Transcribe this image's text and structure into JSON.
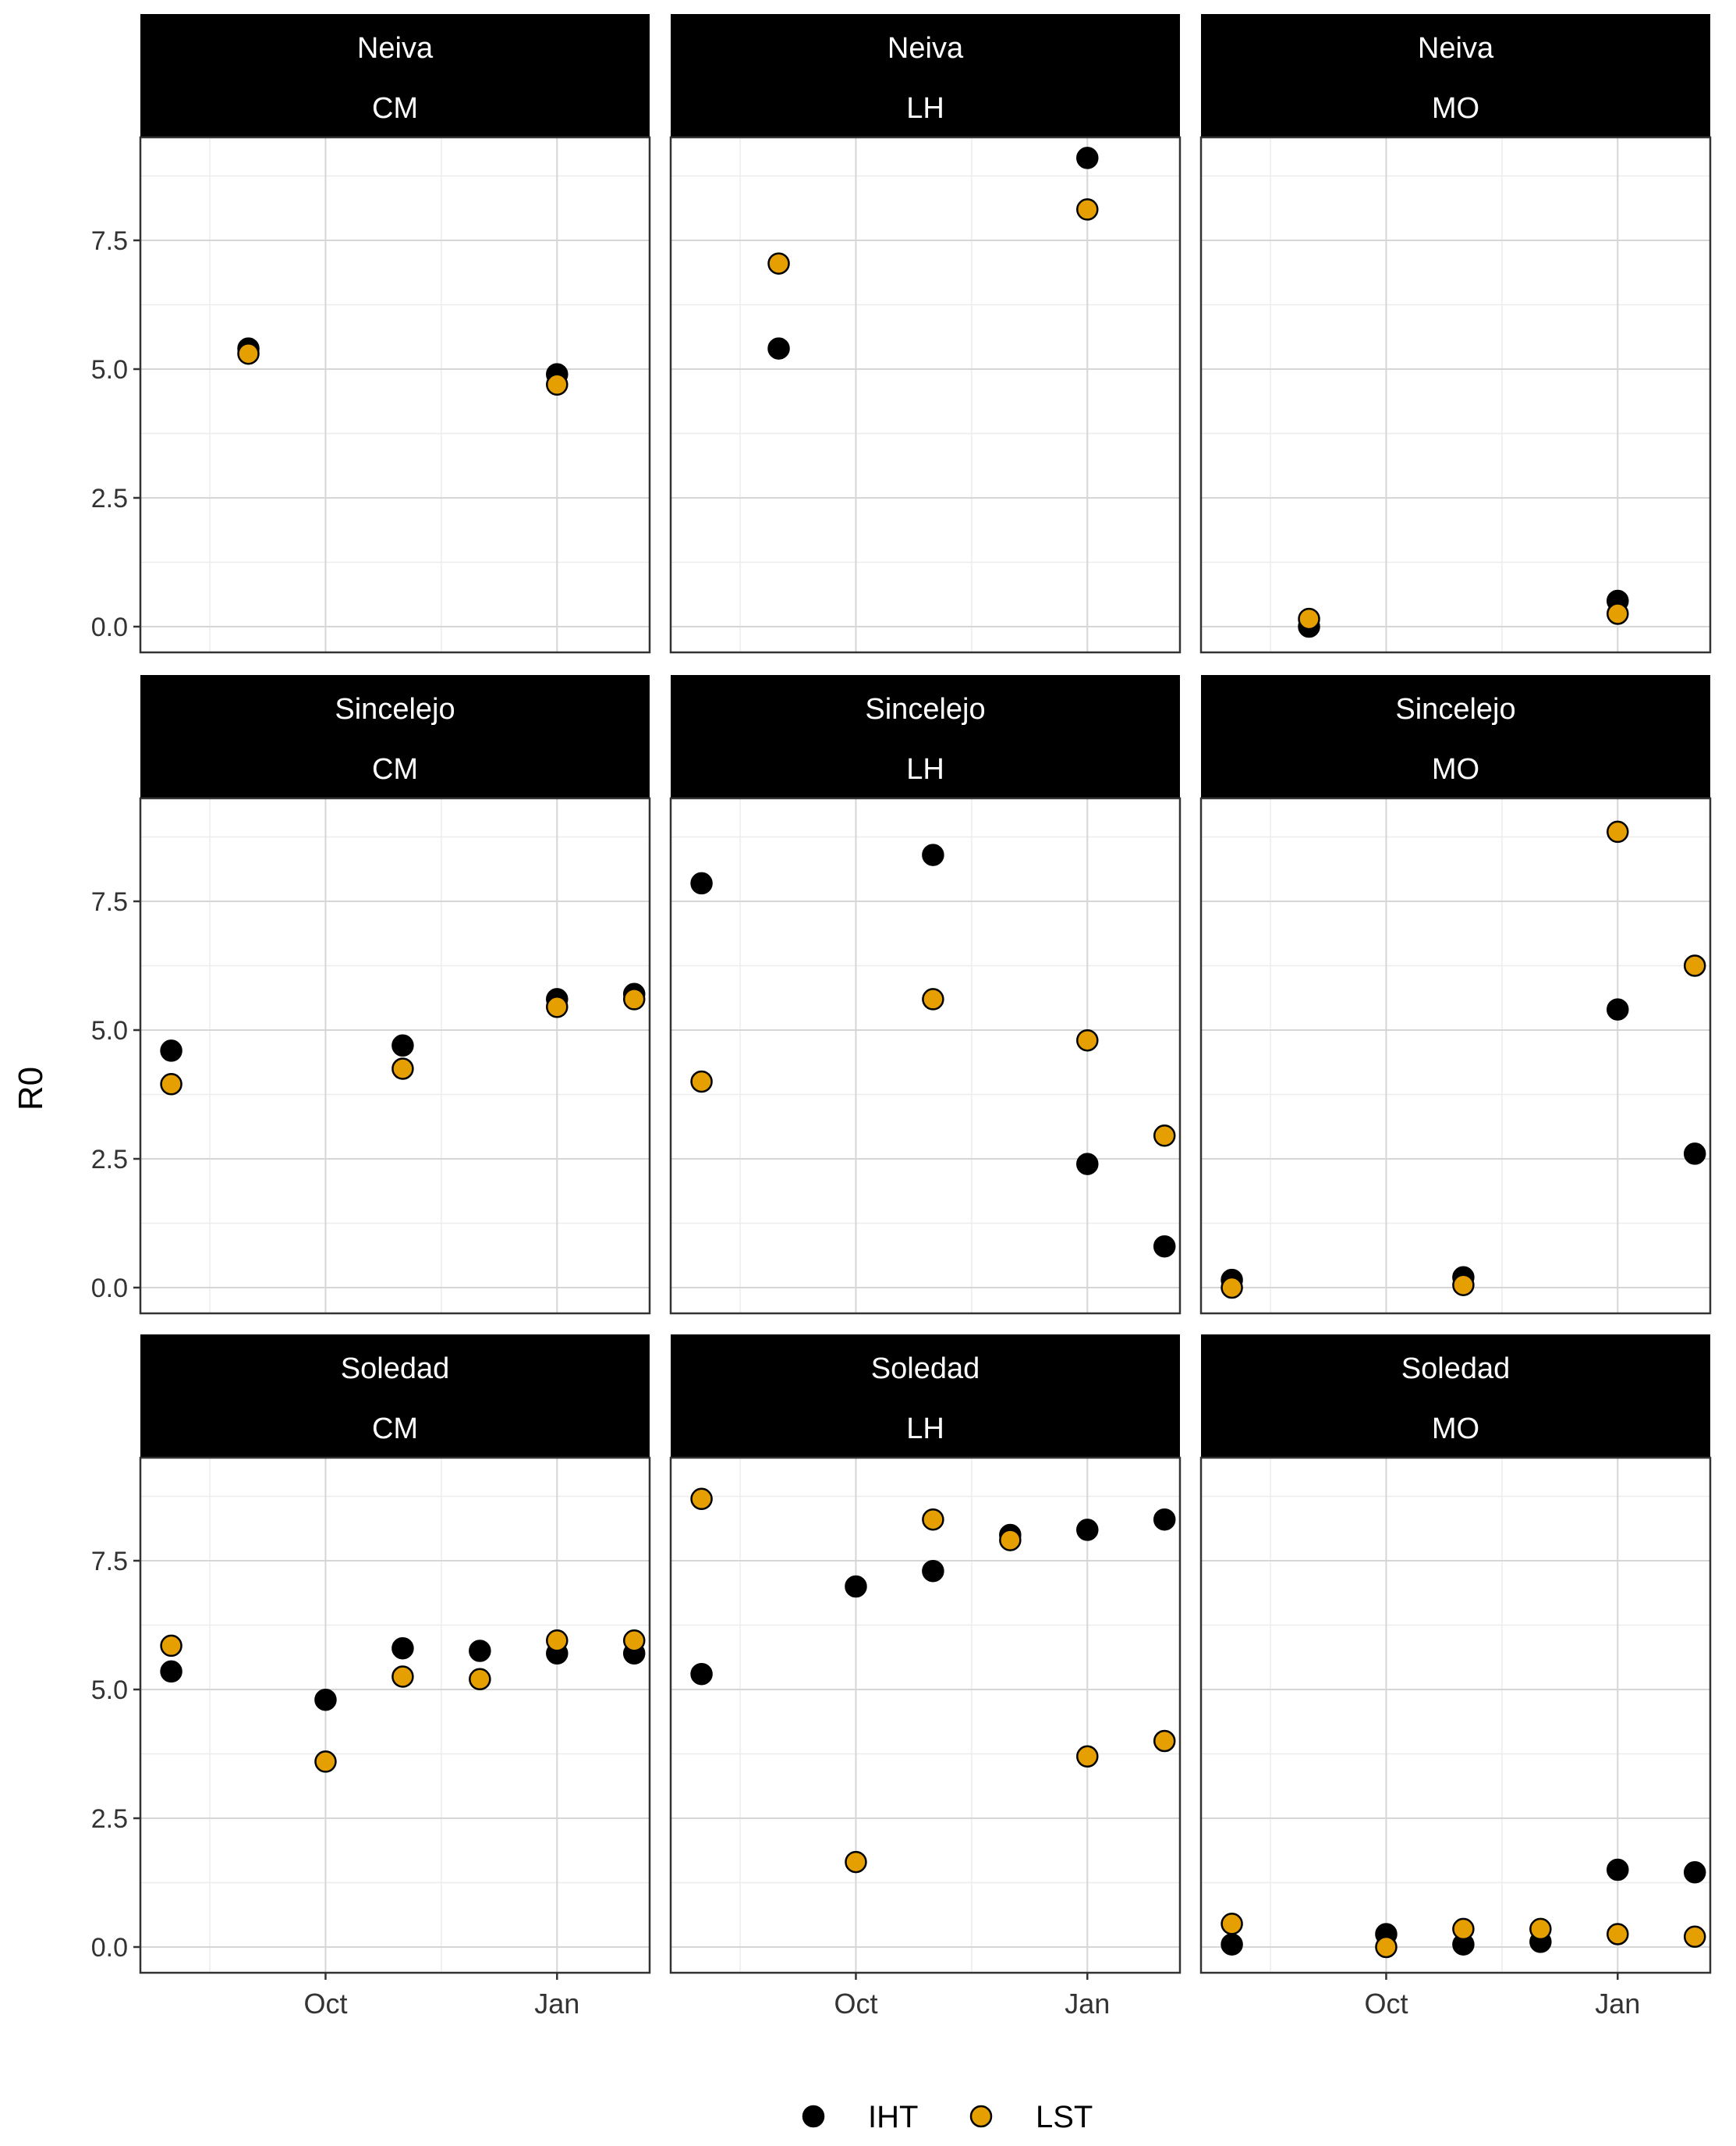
{
  "chart_data": {
    "type": "scatter",
    "ylabel": "R0",
    "xlabel": "",
    "ylim": [
      -0.5,
      9.5
    ],
    "yticks": [
      0.0,
      2.5,
      5.0,
      7.5
    ],
    "ytick_labels": [
      "0.0",
      "2.5",
      "5.0",
      "7.5"
    ],
    "x_domain": [
      -2.4,
      4.2
    ],
    "x_unit": "months relative to October (Oct = 0, Jan = 3)",
    "xticks": [
      0,
      3
    ],
    "xtick_labels": [
      "Oct",
      "Jan"
    ],
    "x_minor_gridlines": [
      -1.5,
      1.5
    ],
    "legend": {
      "position": "bottom",
      "entries": [
        {
          "label": "IHT",
          "color": "#000000"
        },
        {
          "label": "LST",
          "color": "#E69F00"
        }
      ]
    },
    "series_colors": {
      "IHT": "#000000",
      "LST": "#E69F00"
    },
    "panels": [
      {
        "strip_top": "Neiva",
        "strip_bottom": "CM",
        "IHT": [
          [
            -1,
            5.4
          ],
          [
            3,
            4.9
          ]
        ],
        "LST": [
          [
            -1,
            5.3
          ],
          [
            3,
            4.7
          ]
        ]
      },
      {
        "strip_top": "Neiva",
        "strip_bottom": "LH",
        "IHT": [
          [
            -1,
            5.4
          ],
          [
            3,
            9.1
          ]
        ],
        "LST": [
          [
            -1,
            7.05
          ],
          [
            3,
            8.1
          ]
        ]
      },
      {
        "strip_top": "Neiva",
        "strip_bottom": "MO",
        "IHT": [
          [
            -1,
            0.0
          ],
          [
            3,
            0.5
          ]
        ],
        "LST": [
          [
            -1,
            0.15
          ],
          [
            3,
            0.25
          ]
        ]
      },
      {
        "strip_top": "Sincelejo",
        "strip_bottom": "CM",
        "IHT": [
          [
            -2,
            4.6
          ],
          [
            1,
            4.7
          ],
          [
            3,
            5.6
          ],
          [
            4,
            5.7
          ]
        ],
        "LST": [
          [
            -2,
            3.95
          ],
          [
            1,
            4.25
          ],
          [
            3,
            5.45
          ],
          [
            4,
            5.6
          ]
        ]
      },
      {
        "strip_top": "Sincelejo",
        "strip_bottom": "LH",
        "IHT": [
          [
            -2,
            7.85
          ],
          [
            1,
            8.4
          ],
          [
            3,
            2.4
          ],
          [
            4,
            0.8
          ]
        ],
        "LST": [
          [
            -2,
            4.0
          ],
          [
            1,
            5.6
          ],
          [
            3,
            4.8
          ],
          [
            4,
            2.95
          ]
        ]
      },
      {
        "strip_top": "Sincelejo",
        "strip_bottom": "MO",
        "IHT": [
          [
            -2,
            0.15
          ],
          [
            1,
            0.2
          ],
          [
            3,
            5.4
          ],
          [
            4,
            2.6
          ]
        ],
        "LST": [
          [
            -2,
            0.0
          ],
          [
            1,
            0.05
          ],
          [
            3,
            8.85
          ],
          [
            4,
            6.25
          ]
        ]
      },
      {
        "strip_top": "Soledad",
        "strip_bottom": "CM",
        "IHT": [
          [
            -2,
            5.35
          ],
          [
            0,
            4.8
          ],
          [
            1,
            5.8
          ],
          [
            2,
            5.75
          ],
          [
            3,
            5.7
          ],
          [
            4,
            5.7
          ]
        ],
        "LST": [
          [
            -2,
            5.85
          ],
          [
            0,
            3.6
          ],
          [
            1,
            5.25
          ],
          [
            2,
            5.2
          ],
          [
            3,
            5.95
          ],
          [
            4,
            5.95
          ]
        ]
      },
      {
        "strip_top": "Soledad",
        "strip_bottom": "LH",
        "IHT": [
          [
            -2,
            5.3
          ],
          [
            0,
            7.0
          ],
          [
            1,
            7.3
          ],
          [
            2,
            8.0
          ],
          [
            3,
            8.1
          ],
          [
            4,
            8.3
          ]
        ],
        "LST": [
          [
            -2,
            8.7
          ],
          [
            0,
            1.65
          ],
          [
            1,
            8.3
          ],
          [
            2,
            7.9
          ],
          [
            3,
            3.7
          ],
          [
            4,
            4.0
          ]
        ]
      },
      {
        "strip_top": "Soledad",
        "strip_bottom": "MO",
        "IHT": [
          [
            -2,
            0.05
          ],
          [
            0,
            0.25
          ],
          [
            1,
            0.05
          ],
          [
            2,
            0.1
          ],
          [
            3,
            1.5
          ],
          [
            4,
            1.45
          ]
        ],
        "LST": [
          [
            -2,
            0.45
          ],
          [
            0,
            0.0
          ],
          [
            1,
            0.35
          ],
          [
            2,
            0.35
          ],
          [
            3,
            0.25
          ],
          [
            4,
            0.2
          ]
        ]
      }
    ]
  }
}
